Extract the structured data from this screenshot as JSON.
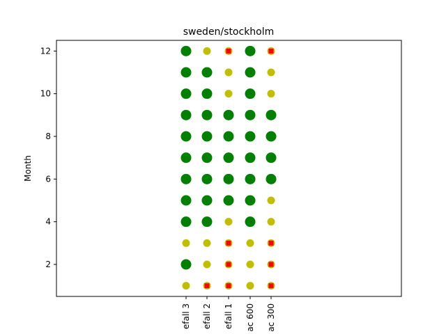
{
  "chart_data": {
    "type": "scatter",
    "title": "sweden/stockholm",
    "xlabel": "",
    "ylabel": "Month",
    "categories": [
      "efall 3",
      "efall 2",
      "efall 1",
      "ac 600",
      "ac 300"
    ],
    "yticks": [
      2,
      4,
      6,
      8,
      10,
      12
    ],
    "ylim": [
      0.5,
      12.5
    ],
    "grid": false,
    "legend": "none",
    "levels": {
      "G": {
        "meaning": "large green",
        "color": "#008000"
      },
      "Y": {
        "meaning": "small yellow",
        "color": "#bfbf00"
      },
      "R": {
        "meaning": "small yellow with red square",
        "color": "#bfbf00",
        "marker_color": "#ff0000"
      }
    },
    "grid_values": [
      {
        "month": 12,
        "values": [
          "G",
          "Y",
          "R",
          "G",
          "R"
        ]
      },
      {
        "month": 11,
        "values": [
          "G",
          "G",
          "Y",
          "G",
          "Y"
        ]
      },
      {
        "month": 10,
        "values": [
          "G",
          "G",
          "Y",
          "G",
          "Y"
        ]
      },
      {
        "month": 9,
        "values": [
          "G",
          "G",
          "G",
          "G",
          "G"
        ]
      },
      {
        "month": 8,
        "values": [
          "G",
          "G",
          "G",
          "G",
          "G"
        ]
      },
      {
        "month": 7,
        "values": [
          "G",
          "G",
          "G",
          "G",
          "G"
        ]
      },
      {
        "month": 6,
        "values": [
          "G",
          "G",
          "G",
          "G",
          "G"
        ]
      },
      {
        "month": 5,
        "values": [
          "G",
          "G",
          "G",
          "G",
          "Y"
        ]
      },
      {
        "month": 4,
        "values": [
          "G",
          "G",
          "Y",
          "G",
          "Y"
        ]
      },
      {
        "month": 3,
        "values": [
          "Y",
          "Y",
          "R",
          "Y",
          "R"
        ]
      },
      {
        "month": 2,
        "values": [
          "G",
          "Y",
          "R",
          "Y",
          "R"
        ]
      },
      {
        "month": 1,
        "values": [
          "Y",
          "R",
          "R",
          "Y",
          "R"
        ]
      }
    ]
  }
}
